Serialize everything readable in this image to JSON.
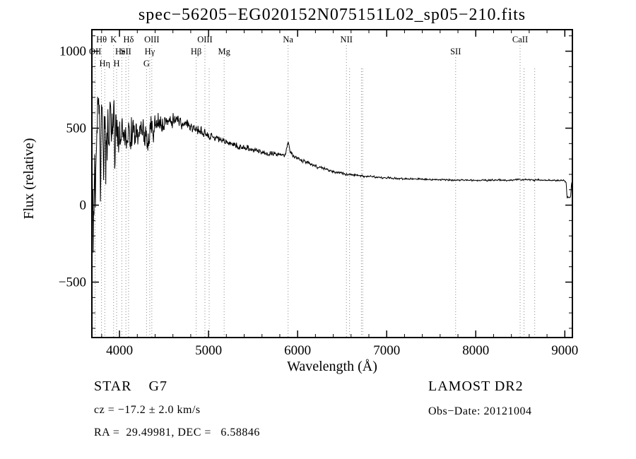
{
  "chart_data": {
    "type": "line",
    "title": "spec−56205−EG020152N075151L02_sp05−210.fits",
    "xlabel": "Wavelength (Å)",
    "ylabel": "Flux (relative)",
    "xlim": [
      3690,
      9085
    ],
    "ylim": [
      -860,
      1140
    ],
    "x_major_ticks": [
      4000,
      5000,
      6000,
      7000,
      8000,
      9000
    ],
    "x_minor_step": 200,
    "y_major_ticks": [
      -500,
      0,
      500,
      1000
    ],
    "y_minor_step": 100,
    "grid": false,
    "legend": "none",
    "line_color": "#000000",
    "ref_line_color": "#8a8a8a",
    "spectral_lines": [
      {
        "wavelength": 3727,
        "label": "OII",
        "row": 2
      },
      {
        "wavelength": 3798,
        "label": "Hθ",
        "row": 1
      },
      {
        "wavelength": 3835,
        "label": "Hη",
        "row": 3
      },
      {
        "wavelength": 3934,
        "label": "K",
        "row": 1
      },
      {
        "wavelength": 3968,
        "label": "H",
        "row": 3
      },
      {
        "wavelength": 4026,
        "label": "HeI",
        "row": 2
      },
      {
        "wavelength": 4072,
        "label": "SII",
        "row": 2
      },
      {
        "wavelength": 4102,
        "label": "Hδ",
        "row": 1
      },
      {
        "wavelength": 4304,
        "label": "G",
        "row": 3
      },
      {
        "wavelength": 4340,
        "label": "Hγ",
        "row": 2
      },
      {
        "wavelength": 4363,
        "label": "OIII",
        "row": 1
      },
      {
        "wavelength": 4861,
        "label": "Hβ",
        "row": 2
      },
      {
        "wavelength": 4959,
        "label": "OIII",
        "row": 1
      },
      {
        "wavelength": 5007,
        "label": "",
        "row": 0
      },
      {
        "wavelength": 5175,
        "label": "Mg",
        "row": 2
      },
      {
        "wavelength": 5893,
        "label": "Na",
        "row": 1
      },
      {
        "wavelength": 6548,
        "label": "NII",
        "row": 1
      },
      {
        "wavelength": 6583,
        "label": "",
        "row": 0
      },
      {
        "wavelength": 6716,
        "label": "",
        "row": 0
      },
      {
        "wavelength": 6731,
        "label": "",
        "row": 0
      },
      {
        "wavelength": 7774,
        "label": "SII",
        "row": 2
      },
      {
        "wavelength": 8498,
        "label": "CaII",
        "row": 1
      },
      {
        "wavelength": 8542,
        "label": "",
        "row": 0
      },
      {
        "wavelength": 8662,
        "label": "",
        "row": 0
      }
    ],
    "continuum_points": [
      [
        3690,
        260
      ],
      [
        3715,
        140
      ],
      [
        3745,
        300
      ],
      [
        3775,
        380
      ],
      [
        3820,
        420
      ],
      [
        3870,
        430
      ],
      [
        3920,
        440
      ],
      [
        3970,
        450
      ],
      [
        4050,
        455
      ],
      [
        4150,
        465
      ],
      [
        4250,
        475
      ],
      [
        4350,
        485
      ],
      [
        4450,
        505
      ],
      [
        4550,
        530
      ],
      [
        4650,
        550
      ],
      [
        4720,
        542
      ],
      [
        4800,
        522
      ],
      [
        4860,
        495
      ],
      [
        4920,
        480
      ],
      [
        5000,
        455
      ],
      [
        5100,
        435
      ],
      [
        5200,
        408
      ],
      [
        5300,
        390
      ],
      [
        5400,
        375
      ],
      [
        5500,
        358
      ],
      [
        5600,
        344
      ],
      [
        5700,
        333
      ],
      [
        5800,
        324
      ],
      [
        5865,
        328
      ],
      [
        5893,
        408
      ],
      [
        5920,
        335
      ],
      [
        5970,
        312
      ],
      [
        6050,
        288
      ],
      [
        6150,
        262
      ],
      [
        6250,
        242
      ],
      [
        6350,
        226
      ],
      [
        6450,
        212
      ],
      [
        6550,
        202
      ],
      [
        6650,
        195
      ],
      [
        6750,
        189
      ],
      [
        6850,
        184
      ],
      [
        6950,
        179
      ],
      [
        7050,
        175
      ],
      [
        7200,
        171
      ],
      [
        7400,
        168
      ],
      [
        7600,
        165
      ],
      [
        7800,
        163
      ],
      [
        8000,
        161
      ],
      [
        8200,
        162
      ],
      [
        8400,
        164
      ],
      [
        8600,
        165
      ],
      [
        8800,
        163
      ],
      [
        8950,
        160
      ],
      [
        9005,
        157
      ],
      [
        9015,
        150
      ],
      [
        9025,
        48
      ],
      [
        9065,
        55
      ],
      [
        9075,
        140
      ],
      [
        9085,
        150
      ]
    ],
    "noise_envelope": [
      [
        3690,
        650
      ],
      [
        3715,
        780
      ],
      [
        3745,
        700
      ],
      [
        3775,
        560
      ],
      [
        3810,
        470
      ],
      [
        3860,
        380
      ],
      [
        3910,
        300
      ],
      [
        3960,
        260
      ],
      [
        4010,
        230
      ],
      [
        4060,
        210
      ],
      [
        4120,
        200
      ],
      [
        4200,
        180
      ],
      [
        4300,
        140
      ],
      [
        4400,
        110
      ],
      [
        4500,
        80
      ],
      [
        4600,
        62
      ],
      [
        4750,
        48
      ],
      [
        4900,
        40
      ],
      [
        5050,
        34
      ],
      [
        5200,
        30
      ],
      [
        5400,
        27
      ],
      [
        5600,
        24
      ],
      [
        5800,
        21
      ],
      [
        6000,
        18
      ],
      [
        6200,
        15
      ],
      [
        6400,
        12
      ],
      [
        6600,
        10
      ],
      [
        6800,
        9
      ],
      [
        7100,
        8
      ],
      [
        7500,
        7
      ],
      [
        8000,
        7
      ],
      [
        8500,
        7
      ],
      [
        9000,
        8
      ],
      [
        9085,
        8
      ]
    ],
    "noise_seed": 20121004,
    "sample_step": 4
  },
  "annotations": {
    "class_label": "STAR    G7",
    "survey": "LAMOST DR2",
    "cz": "cz = −17.2 ± 2.0 km/s",
    "obs_date": "Obs−Date: 20121004",
    "ra_dec": "RA =  29.49981, DEC =   6.58846"
  }
}
